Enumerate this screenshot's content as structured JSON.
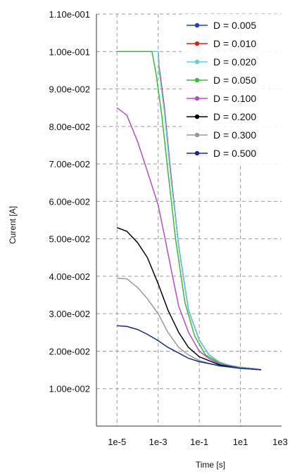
{
  "chart_data": {
    "type": "line",
    "title": "",
    "xlabel": "Time [s]",
    "ylabel": "Curent [A]",
    "xscale": "log",
    "xlim": [
      1e-06,
      1000
    ],
    "ylim": [
      0,
      0.11
    ],
    "xticks": [
      1e-05,
      0.001,
      0.1,
      10,
      1000
    ],
    "xtick_labels": [
      "1e-5",
      "1e-3",
      "1e-1",
      "1e1",
      "1e3"
    ],
    "yticks": [
      0.01,
      0.02,
      0.03,
      0.04,
      0.05,
      0.06,
      0.07,
      0.08,
      0.09,
      0.1,
      0.11
    ],
    "ytick_labels": [
      "1.00e-002",
      "2.00e-002",
      "3.00e-002",
      "4.00e-002",
      "5.00e-002",
      "6.00e-002",
      "7.00e-002",
      "8.00e-002",
      "9.00e-002",
      "1.00e-001",
      "1.10e-001"
    ],
    "grid": true,
    "legend_position": "top-right",
    "series": [
      {
        "name": "D = 0.005",
        "color": "#1f3fbf",
        "x": [
          1e-05,
          0.0009,
          0.001,
          0.0011,
          0.002,
          0.004,
          0.01,
          0.03,
          0.1,
          0.3,
          1,
          3,
          10,
          50,
          100
        ],
        "y": [
          0.1,
          0.1,
          0.1,
          0.096,
          0.085,
          0.068,
          0.048,
          0.031,
          0.023,
          0.019,
          0.017,
          0.0162,
          0.0157,
          0.0153,
          0.015
        ]
      },
      {
        "name": "D = 0.010",
        "color": "#e0201a",
        "x": [
          1e-05,
          0.0009,
          0.001,
          0.0011,
          0.002,
          0.004,
          0.01,
          0.03,
          0.1,
          0.3,
          1,
          3,
          10,
          50,
          100
        ],
        "y": [
          0.1,
          0.1,
          0.1,
          0.096,
          0.085,
          0.068,
          0.048,
          0.031,
          0.023,
          0.019,
          0.017,
          0.0162,
          0.0157,
          0.0153,
          0.015
        ]
      },
      {
        "name": "D = 0.020",
        "color": "#5fd0e0",
        "x": [
          1e-05,
          0.0009,
          0.001,
          0.0011,
          0.002,
          0.004,
          0.01,
          0.03,
          0.1,
          0.3,
          1,
          3,
          10,
          50,
          100
        ],
        "y": [
          0.1,
          0.1,
          0.1,
          0.095,
          0.084,
          0.067,
          0.048,
          0.031,
          0.023,
          0.019,
          0.017,
          0.0162,
          0.0157,
          0.0153,
          0.015
        ]
      },
      {
        "name": "D = 0.050",
        "color": "#3cb83c",
        "x": [
          1e-05,
          0.0004,
          0.0005,
          0.0008,
          0.0015,
          0.003,
          0.007,
          0.02,
          0.06,
          0.2,
          1,
          3,
          10,
          50,
          100
        ],
        "y": [
          0.1,
          0.1,
          0.1,
          0.094,
          0.083,
          0.068,
          0.05,
          0.033,
          0.024,
          0.019,
          0.0168,
          0.016,
          0.0156,
          0.0152,
          0.015
        ]
      },
      {
        "name": "D = 0.100",
        "color": "#b04fc0",
        "x": [
          1e-05,
          3e-05,
          0.0001,
          0.0003,
          0.001,
          0.002,
          0.005,
          0.01,
          0.03,
          0.1,
          0.3,
          1,
          10,
          100
        ],
        "y": [
          0.085,
          0.083,
          0.076,
          0.068,
          0.059,
          0.051,
          0.04,
          0.032,
          0.025,
          0.02,
          0.018,
          0.0165,
          0.0155,
          0.015
        ]
      },
      {
        "name": "D = 0.200",
        "color": "#000000",
        "x": [
          1e-05,
          3e-05,
          0.0001,
          0.0003,
          0.001,
          0.003,
          0.01,
          0.03,
          0.1,
          1,
          10,
          100
        ],
        "y": [
          0.053,
          0.052,
          0.049,
          0.045,
          0.038,
          0.031,
          0.025,
          0.021,
          0.0185,
          0.0163,
          0.0155,
          0.015
        ]
      },
      {
        "name": "D = 0.300",
        "color": "#999999",
        "x": [
          1e-05,
          3e-05,
          0.0001,
          0.0003,
          0.001,
          0.003,
          0.01,
          0.03,
          0.1,
          1,
          10,
          100
        ],
        "y": [
          0.0395,
          0.0393,
          0.037,
          0.034,
          0.03,
          0.025,
          0.021,
          0.019,
          0.0175,
          0.016,
          0.0155,
          0.015
        ]
      },
      {
        "name": "D = 0.500",
        "color": "#1a2a80",
        "x": [
          1e-05,
          3e-05,
          0.0001,
          0.0003,
          0.001,
          0.003,
          0.01,
          0.03,
          0.1,
          1,
          10,
          100
        ],
        "y": [
          0.0268,
          0.0266,
          0.0258,
          0.0245,
          0.0228,
          0.021,
          0.0195,
          0.0181,
          0.0172,
          0.0161,
          0.0154,
          0.0151
        ]
      }
    ]
  }
}
